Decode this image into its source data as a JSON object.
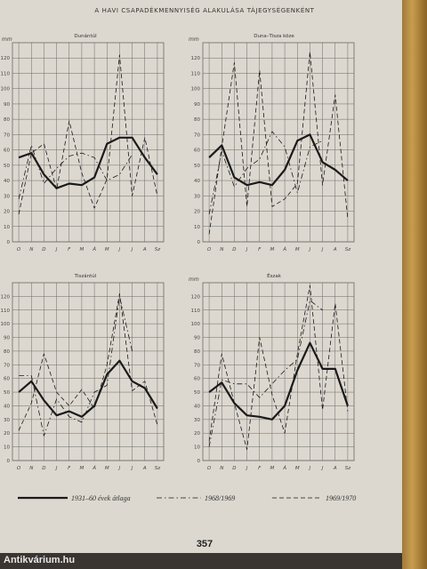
{
  "page": {
    "title": "A HAVI CSAPADÉKMENNYISÉG ALAKULÁSA TÁJEGYSÉGENKÉNT",
    "page_number": "357",
    "watermark": "Antikvárium.hu"
  },
  "legend": {
    "items": [
      {
        "label": "1931–60 évek átlaga",
        "style": "solid"
      },
      {
        "label": "1968/1969",
        "style": "dashdot"
      },
      {
        "label": "1969/1970",
        "style": "dashed"
      }
    ]
  },
  "colors": {
    "ink": "#1a1a1a",
    "grid": "#6a6a6a",
    "paper": "#dcd8cf"
  },
  "chart_data": [
    {
      "type": "line",
      "title": "Dunántúl",
      "ylabel": "mm",
      "ylim": [
        0,
        130
      ],
      "yticks": [
        0,
        10,
        20,
        30,
        40,
        50,
        60,
        70,
        80,
        90,
        100,
        110,
        120
      ],
      "categories": [
        "O",
        "N",
        "D",
        "J",
        "F",
        "M",
        "Á",
        "M",
        "J",
        "J",
        "A",
        "Sz"
      ],
      "series": [
        {
          "name": "1931–60 évek átlaga",
          "style": "solid",
          "values": [
            55,
            58,
            44,
            35,
            38,
            37,
            42,
            64,
            68,
            68,
            55,
            44
          ]
        },
        {
          "name": "1968/1969",
          "style": "dashdot",
          "values": [
            28,
            63,
            38,
            48,
            56,
            58,
            55,
            40,
            44,
            57,
            null,
            null
          ]
        },
        {
          "name": "1969/1970",
          "style": "dashed",
          "values": [
            18,
            58,
            64,
            34,
            79,
            45,
            22,
            41,
            122,
            30,
            68,
            30
          ]
        }
      ]
    },
    {
      "type": "line",
      "title": "Duna–Tisza köze",
      "ylabel": "mm",
      "ylim": [
        0,
        130
      ],
      "yticks": [
        0,
        10,
        20,
        30,
        40,
        50,
        60,
        70,
        80,
        90,
        100,
        110,
        120
      ],
      "categories": [
        "O",
        "N",
        "D",
        "J",
        "F",
        "M",
        "Á",
        "M",
        "J",
        "J",
        "A",
        "Sz"
      ],
      "series": [
        {
          "name": "1931–60 évek átlaga",
          "style": "solid",
          "values": [
            55,
            63,
            42,
            37,
            39,
            37,
            47,
            66,
            70,
            52,
            47,
            40
          ]
        },
        {
          "name": "1968/1969",
          "style": "dashdot",
          "values": [
            18,
            59,
            36,
            48,
            54,
            72,
            62,
            32,
            62,
            66,
            null,
            null
          ]
        },
        {
          "name": "1969/1970",
          "style": "dashed",
          "values": [
            5,
            62,
            117,
            23,
            112,
            23,
            28,
            38,
            124,
            37,
            96,
            15
          ]
        }
      ]
    },
    {
      "type": "line",
      "title": "Tiszántúl",
      "ylabel": "",
      "ylim": [
        0,
        130
      ],
      "yticks": [
        0,
        10,
        20,
        30,
        40,
        50,
        60,
        70,
        80,
        90,
        100,
        110,
        120
      ],
      "categories": [
        "O",
        "N",
        "D",
        "J",
        "F",
        "M",
        "Á",
        "M",
        "J",
        "J",
        "A",
        "Sz"
      ],
      "series": [
        {
          "name": "1931–60 évek átlaga",
          "style": "solid",
          "values": [
            50,
            58,
            44,
            33,
            36,
            32,
            40,
            63,
            73,
            58,
            53,
            38
          ]
        },
        {
          "name": "1968/1969",
          "style": "dashdot",
          "values": [
            62,
            62,
            18,
            45,
            32,
            28,
            50,
            55,
            120,
            80,
            null,
            null
          ]
        },
        {
          "name": "1969/1970",
          "style": "dashed",
          "values": [
            22,
            42,
            78,
            50,
            40,
            52,
            38,
            70,
            122,
            51,
            58,
            26
          ]
        }
      ]
    },
    {
      "type": "line",
      "title": "Észak",
      "ylabel": "mm",
      "ylim": [
        0,
        130
      ],
      "yticks": [
        0,
        10,
        20,
        30,
        40,
        50,
        60,
        70,
        80,
        90,
        100,
        110,
        120
      ],
      "categories": [
        "O",
        "N",
        "D",
        "J",
        "F",
        "M",
        "Á",
        "M",
        "J",
        "J",
        "A",
        "Sz"
      ],
      "series": [
        {
          "name": "1931–60 évek átlaga",
          "style": "solid",
          "values": [
            50,
            57,
            42,
            33,
            32,
            30,
            40,
            66,
            86,
            67,
            67,
            40
          ]
        },
        {
          "name": "1968/1969",
          "style": "dashdot",
          "values": [
            10,
            59,
            56,
            56,
            46,
            56,
            66,
            74,
            117,
            110,
            null,
            null
          ]
        },
        {
          "name": "1969/1970",
          "style": "dashed",
          "values": [
            14,
            78,
            42,
            8,
            90,
            48,
            20,
            78,
            128,
            37,
            115,
            36
          ]
        }
      ]
    }
  ]
}
